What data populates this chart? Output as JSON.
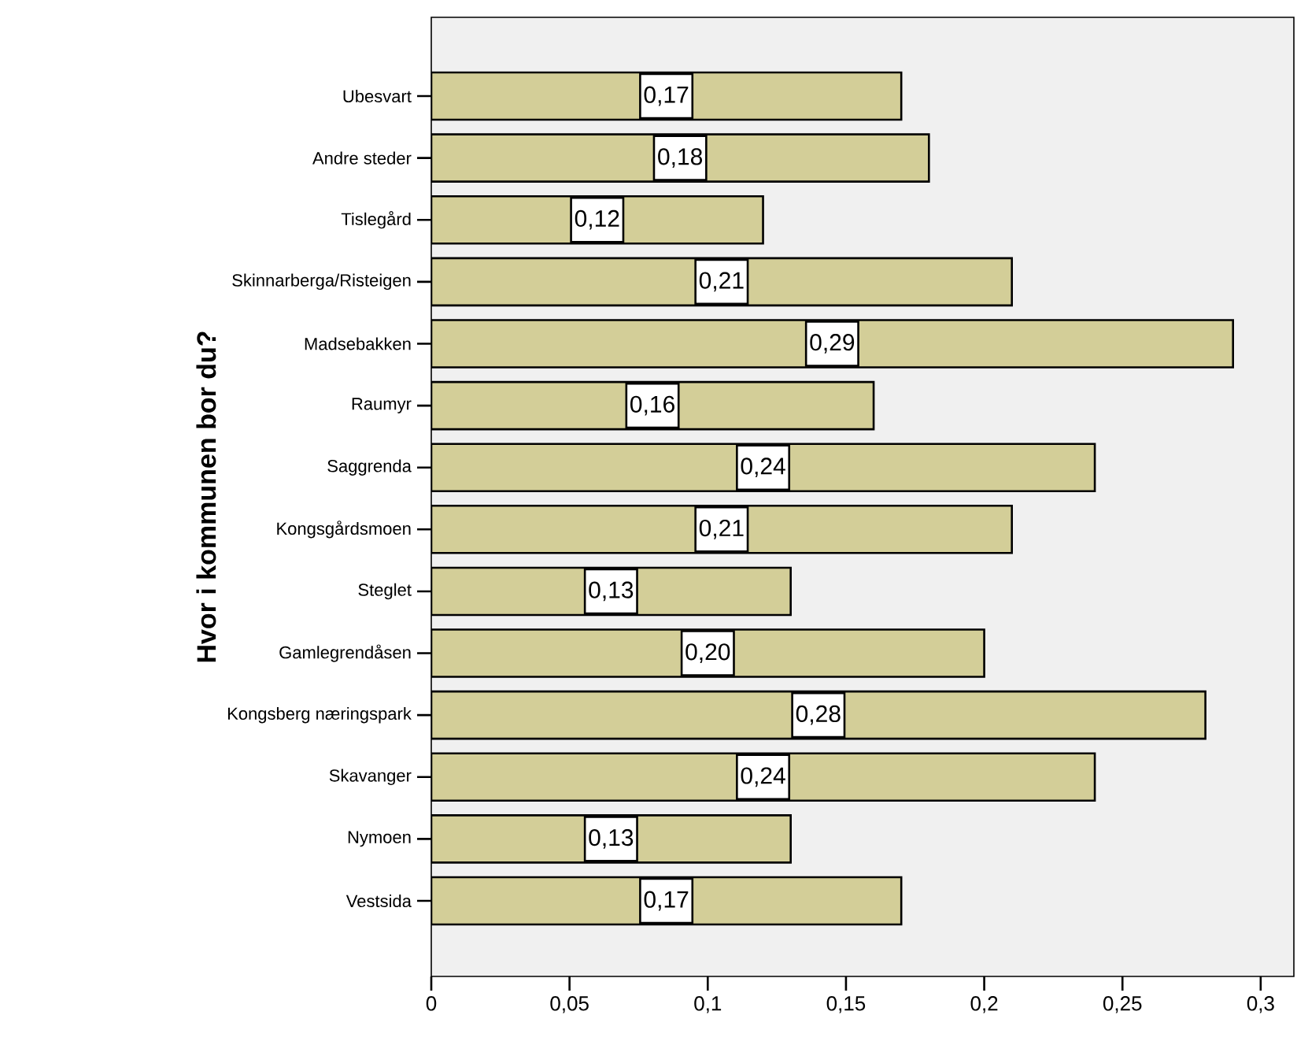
{
  "chart_data": {
    "type": "bar",
    "orientation": "horizontal",
    "ylabel": "Hvor i kommunen bor du?",
    "categories": [
      "Ubesvart",
      "Andre steder",
      "Tislegård",
      "Skinnarberga/Risteigen",
      "Madsebakken",
      "Raumyr",
      "Saggrenda",
      "Kongsgårdsmoen",
      "Steglet",
      "Gamlegrendåsen",
      "Kongsberg næringspark",
      "Skavanger",
      "Nymoen",
      "Vestsida"
    ],
    "values": [
      0.17,
      0.18,
      0.12,
      0.21,
      0.29,
      0.16,
      0.24,
      0.21,
      0.13,
      0.2,
      0.28,
      0.24,
      0.13,
      0.17
    ],
    "value_labels": [
      "0,17",
      "0,18",
      "0,12",
      "0,21",
      "0,29",
      "0,16",
      "0,24",
      "0,21",
      "0,13",
      "0,20",
      "0,28",
      "0,24",
      "0,13",
      "0,17"
    ],
    "color": "#d3ce98",
    "xlim": [
      0,
      0.312
    ],
    "xticks": [
      0,
      {
        "value": 0.05,
        "label": "0,05"
      },
      {
        "value": 0.1,
        "label": "0,1"
      },
      {
        "value": 0.15,
        "label": "0,15"
      },
      {
        "value": 0.2,
        "label": "0,2"
      },
      {
        "value": 0.25,
        "label": "0,25"
      },
      {
        "value": 0.3,
        "label": "0,3"
      }
    ]
  }
}
